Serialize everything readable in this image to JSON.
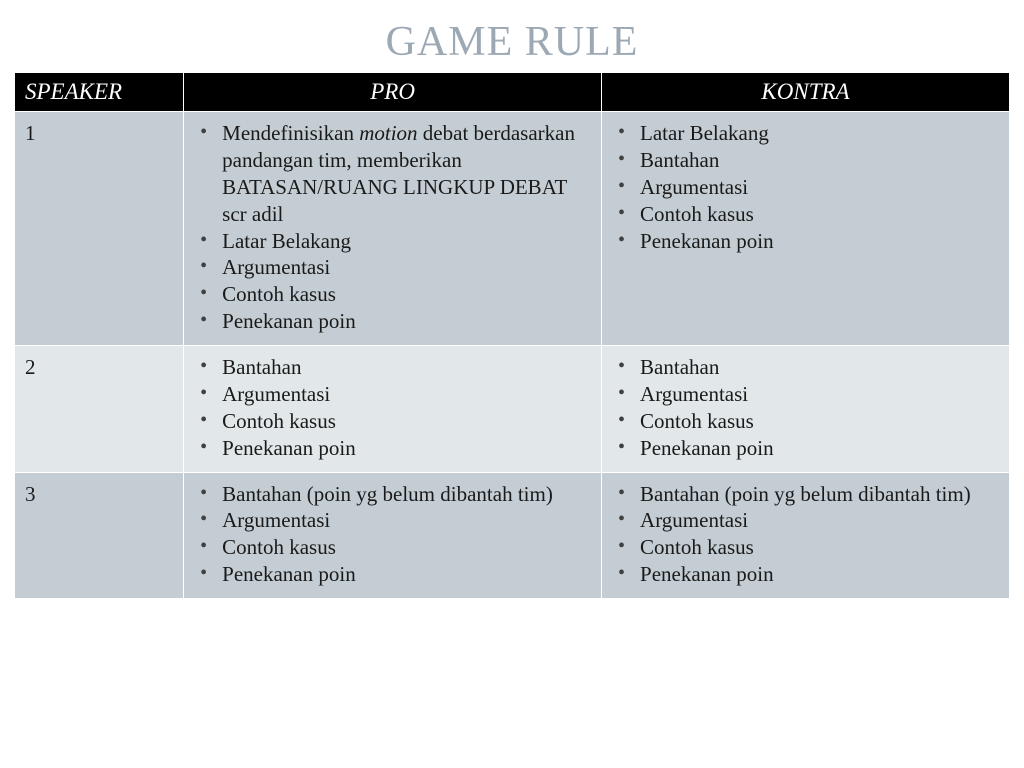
{
  "title": "GAME RULE",
  "title_color": "#9ca9b4",
  "header_bg": "#000000",
  "header_text_color": "#ffffff",
  "row_bg_alt1": "#c3cdd3",
  "row_bg_alt2": "#e2e7ea",
  "text_color": "#1a1a1a",
  "bullet_color": "#404040",
  "columns": [
    "SPEAKER",
    "PRO",
    "KONTRA"
  ],
  "rows": [
    {
      "speaker": "1",
      "pro": [
        {
          "text": "Mendefinisikan ",
          "italic_run": "motion",
          "tail": " debat berdasarkan pandangan tim, memberikan BATASAN/RUANG LINGKUP DEBAT scr adil"
        },
        {
          "text": "Latar Belakang"
        },
        {
          "text": "Argumentasi"
        },
        {
          "text": "Contoh kasus"
        },
        {
          "text": "Penekanan poin"
        }
      ],
      "kontra": [
        {
          "text": "Latar Belakang"
        },
        {
          "text": "Bantahan"
        },
        {
          "text": "Argumentasi"
        },
        {
          "text": "Contoh kasus"
        },
        {
          "text": "Penekanan poin"
        }
      ]
    },
    {
      "speaker": "2",
      "pro": [
        {
          "text": "Bantahan"
        },
        {
          "text": "Argumentasi"
        },
        {
          "text": "Contoh kasus"
        },
        {
          "text": "Penekanan poin"
        }
      ],
      "kontra": [
        {
          "text": "Bantahan"
        },
        {
          "text": "Argumentasi"
        },
        {
          "text": "Contoh kasus"
        },
        {
          "text": "Penekanan poin"
        }
      ]
    },
    {
      "speaker": "3",
      "pro": [
        {
          "text": "Bantahan (poin yg belum dibantah tim)"
        },
        {
          "text": "Argumentasi"
        },
        {
          "text": "Contoh kasus"
        },
        {
          "text": "Penekanan poin"
        }
      ],
      "kontra": [
        {
          "text": "Bantahan (poin yg belum dibantah tim)"
        },
        {
          "text": "Argumentasi"
        },
        {
          "text": "Contoh kasus"
        },
        {
          "text": "Penekanan poin"
        }
      ]
    }
  ]
}
